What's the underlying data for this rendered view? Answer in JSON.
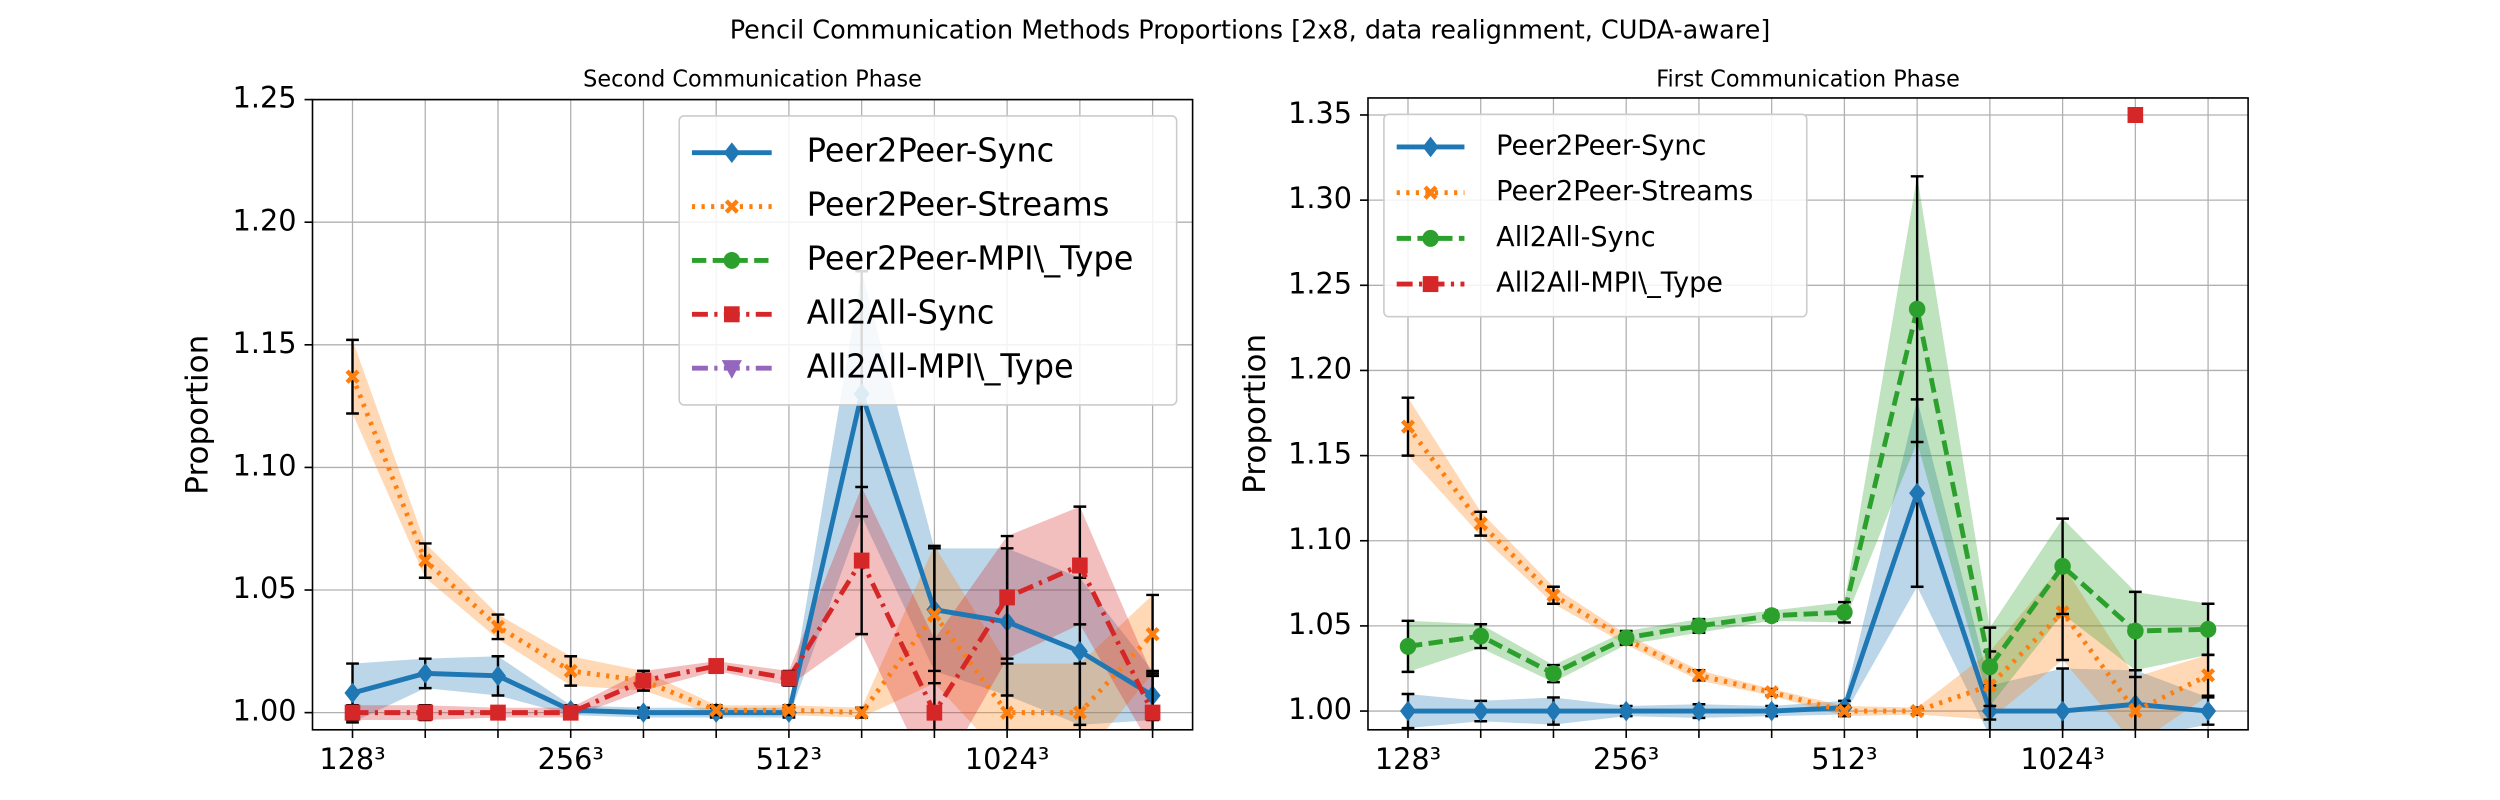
{
  "title": "Pencil Communication Methods Proportions [2x8, data realignment, CUDA-aware]",
  "chart_data": [
    {
      "type": "line",
      "title": "Second Communication Phase",
      "y_label": "Proportion",
      "categories": [
        "128³",
        null,
        null,
        "256³",
        null,
        null,
        "512³",
        null,
        null,
        "1024³",
        null,
        null
      ],
      "ylim": [
        0.993,
        1.25
      ],
      "yticks": [
        {
          "value": 1.0,
          "label": "1.00"
        },
        1.05,
        {
          "value": 1.1,
          "label": "1.10"
        },
        1.15,
        {
          "value": 1.2,
          "label": "1.20"
        },
        1.25
      ],
      "grid": true,
      "legend": "upper right",
      "series": [
        {
          "name": "Peer2Peer-Sync",
          "color": "#1f77b4",
          "marker": "diamond",
          "line": "solid",
          "values": [
            1.008,
            1.016,
            1.015,
            1.001,
            1.0,
            1.0,
            1.0,
            1.13,
            1.042,
            1.037,
            1.025,
            1.007
          ],
          "errors": [
            0.012,
            0.006,
            0.008,
            0.002,
            0.002,
            0.002,
            0.002,
            0.05,
            0.025,
            0.03,
            0.03,
            0.01
          ]
        },
        {
          "name": "Peer2Peer-Streams",
          "color": "#ff7f0e",
          "marker": "x",
          "line": "dotted",
          "values": [
            1.137,
            1.062,
            1.035,
            1.017,
            1.013,
            1.001,
            1.001,
            1.0,
            1.04,
            1.0,
            1.0,
            1.032
          ],
          "errors": [
            0.015,
            0.007,
            0.005,
            0.006,
            0.004,
            0.002,
            0.002,
            0.002,
            0.028,
            0.02,
            0.02,
            0.016
          ]
        },
        {
          "name": "Peer2Peer-MPI\\_Type",
          "color": "#2ca02c",
          "marker": "circle",
          "line": "dashed",
          "values": [
            null,
            null,
            null,
            null,
            null,
            null,
            null,
            null,
            null,
            null,
            null,
            null
          ],
          "errors": [
            null,
            null,
            null,
            null,
            null,
            null,
            null,
            null,
            null,
            null,
            null,
            null
          ]
        },
        {
          "name": "All2All-Sync",
          "color": "#d62728",
          "marker": "square",
          "line": "dashdot",
          "values": [
            1.0,
            1.0,
            1.0,
            1.0,
            1.013,
            1.019,
            1.014,
            1.062,
            1.0,
            1.047,
            1.06,
            1.0
          ],
          "errors": [
            0.003,
            0.003,
            0.002,
            0.002,
            0.004,
            0.002,
            0.003,
            0.03,
            0.03,
            0.025,
            0.024,
            0.015
          ]
        },
        {
          "name": "All2All-MPI\\_Type",
          "color": "#9467bd",
          "marker": "triangle",
          "line": "dashdot",
          "values": [
            null,
            null,
            null,
            null,
            null,
            null,
            null,
            null,
            null,
            null,
            null,
            null
          ],
          "errors": [
            null,
            null,
            null,
            null,
            null,
            null,
            null,
            null,
            null,
            null,
            null,
            null
          ]
        }
      ]
    },
    {
      "type": "line",
      "title": "First Communication Phase",
      "y_label": "Proportion",
      "categories": [
        "128³",
        null,
        null,
        "256³",
        null,
        null,
        "512³",
        null,
        null,
        "1024³",
        null,
        null
      ],
      "ylim": [
        0.989,
        1.36
      ],
      "yticks": [
        {
          "value": 1.0,
          "label": "1.00"
        },
        1.05,
        {
          "value": 1.1,
          "label": "1.10"
        },
        1.15,
        {
          "value": 1.2,
          "label": "1.20"
        },
        1.25,
        {
          "value": 1.3,
          "label": "1.30"
        },
        1.35
      ],
      "grid": true,
      "legend": "upper left",
      "series": [
        {
          "name": "Peer2Peer-Sync",
          "color": "#1f77b4",
          "marker": "diamond",
          "line": "solid",
          "values": [
            1.0,
            1.0,
            1.0,
            1.0,
            1.0,
            1.0,
            1.002,
            1.128,
            1.0,
            1.0,
            1.004,
            1.0
          ],
          "errors": [
            0.01,
            0.006,
            0.008,
            0.003,
            0.004,
            0.003,
            0.004,
            0.055,
            0.015,
            0.025,
            0.02,
            0.008
          ]
        },
        {
          "name": "Peer2Peer-Streams",
          "color": "#ff7f0e",
          "marker": "x",
          "line": "dotted",
          "values": [
            1.167,
            1.11,
            1.068,
            1.042,
            1.021,
            1.011,
            1.0,
            1.0,
            1.015,
            1.058,
            1.0,
            1.021
          ],
          "errors": [
            0.017,
            0.007,
            0.005,
            0.003,
            0.003,
            0.002,
            0.003,
            0.002,
            0.02,
            0.028,
            0.02,
            0.012
          ]
        },
        {
          "name": "All2All-Sync",
          "color": "#2ca02c",
          "marker": "circle",
          "line": "dashed",
          "values": [
            1.038,
            1.044,
            1.022,
            1.043,
            1.05,
            1.056,
            1.058,
            1.236,
            1.026,
            1.085,
            1.047,
            1.048
          ],
          "errors": [
            0.015,
            0.007,
            0.005,
            0.004,
            0.004,
            0.003,
            0.006,
            0.078,
            0.023,
            0.028,
            0.023,
            0.015
          ]
        },
        {
          "name": "All2All-MPI\\_Type",
          "color": "#d62728",
          "marker": "square",
          "line": "dashdot",
          "values": [
            null,
            null,
            null,
            null,
            null,
            null,
            null,
            null,
            null,
            null,
            1.35,
            null
          ],
          "errors": [
            null,
            null,
            null,
            null,
            null,
            null,
            null,
            null,
            null,
            null,
            0.003,
            null
          ]
        }
      ]
    }
  ]
}
